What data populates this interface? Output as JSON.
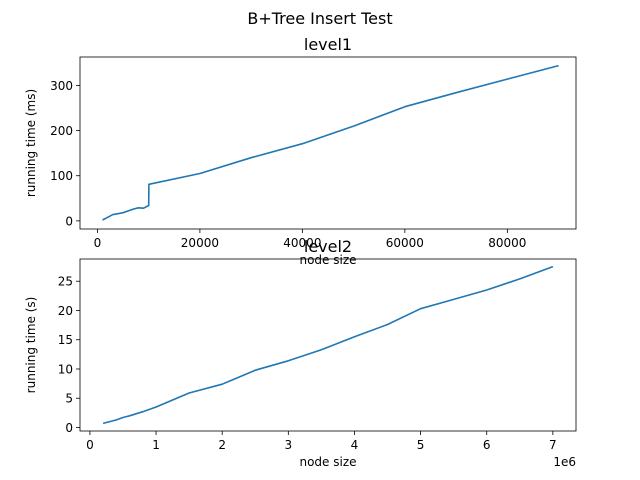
{
  "figure": {
    "suptitle": "B+Tree Insert Test"
  },
  "colors": {
    "line": "#1f77b4",
    "axis": "#000000",
    "background": "#ffffff"
  },
  "chart_data": [
    {
      "type": "line",
      "title": "level1",
      "xlabel": "node size",
      "ylabel": "running time (ms)",
      "xlim": [
        -3400,
        93400
      ],
      "ylim": [
        -18,
        363
      ],
      "grid": false,
      "offset_text": "",
      "xticks": [
        0,
        20000,
        40000,
        60000,
        80000
      ],
      "xtick_labels": [
        "0",
        "20000",
        "40000",
        "60000",
        "80000"
      ],
      "yticks": [
        0,
        100,
        200,
        300
      ],
      "ytick_labels": [
        "0",
        "100",
        "200",
        "300"
      ],
      "series": [
        {
          "x": [
            1000,
            2000,
            3000,
            4000,
            5000,
            6000,
            7000,
            8000,
            9000,
            9500,
            9800,
            10000,
            10050,
            20000,
            30000,
            40000,
            50000,
            60000,
            70000,
            80000,
            90000
          ],
          "y": [
            2,
            8,
            14,
            16,
            18,
            22,
            26,
            29,
            28,
            31,
            33,
            34,
            81,
            105,
            140,
            171,
            210,
            253,
            284,
            314,
            344
          ]
        }
      ]
    },
    {
      "type": "line",
      "title": "level2",
      "xlabel": "node size",
      "ylabel": "running time (s)",
      "xlim": [
        -150000,
        7350000
      ],
      "ylim": [
        -0.6,
        28.8
      ],
      "grid": false,
      "offset_text": "1e6",
      "xticks": [
        0,
        1000000,
        2000000,
        3000000,
        4000000,
        5000000,
        6000000,
        7000000
      ],
      "xtick_labels": [
        "0",
        "1",
        "2",
        "3",
        "4",
        "5",
        "6",
        "7"
      ],
      "yticks": [
        0,
        5,
        10,
        15,
        20,
        25
      ],
      "ytick_labels": [
        "0",
        "5",
        "10",
        "15",
        "20",
        "25"
      ],
      "series": [
        {
          "x": [
            200000,
            300000,
            400000,
            500000,
            600000,
            800000,
            1000000,
            1500000,
            2000000,
            2500000,
            3000000,
            3500000,
            4000000,
            4500000,
            5000000,
            5500000,
            6000000,
            6500000,
            7000000
          ],
          "y": [
            0.7,
            1.0,
            1.3,
            1.7,
            2.0,
            2.7,
            3.5,
            5.9,
            7.4,
            9.8,
            11.4,
            13.3,
            15.5,
            17.6,
            20.3,
            21.9,
            23.5,
            25.4,
            27.5
          ]
        }
      ]
    }
  ]
}
